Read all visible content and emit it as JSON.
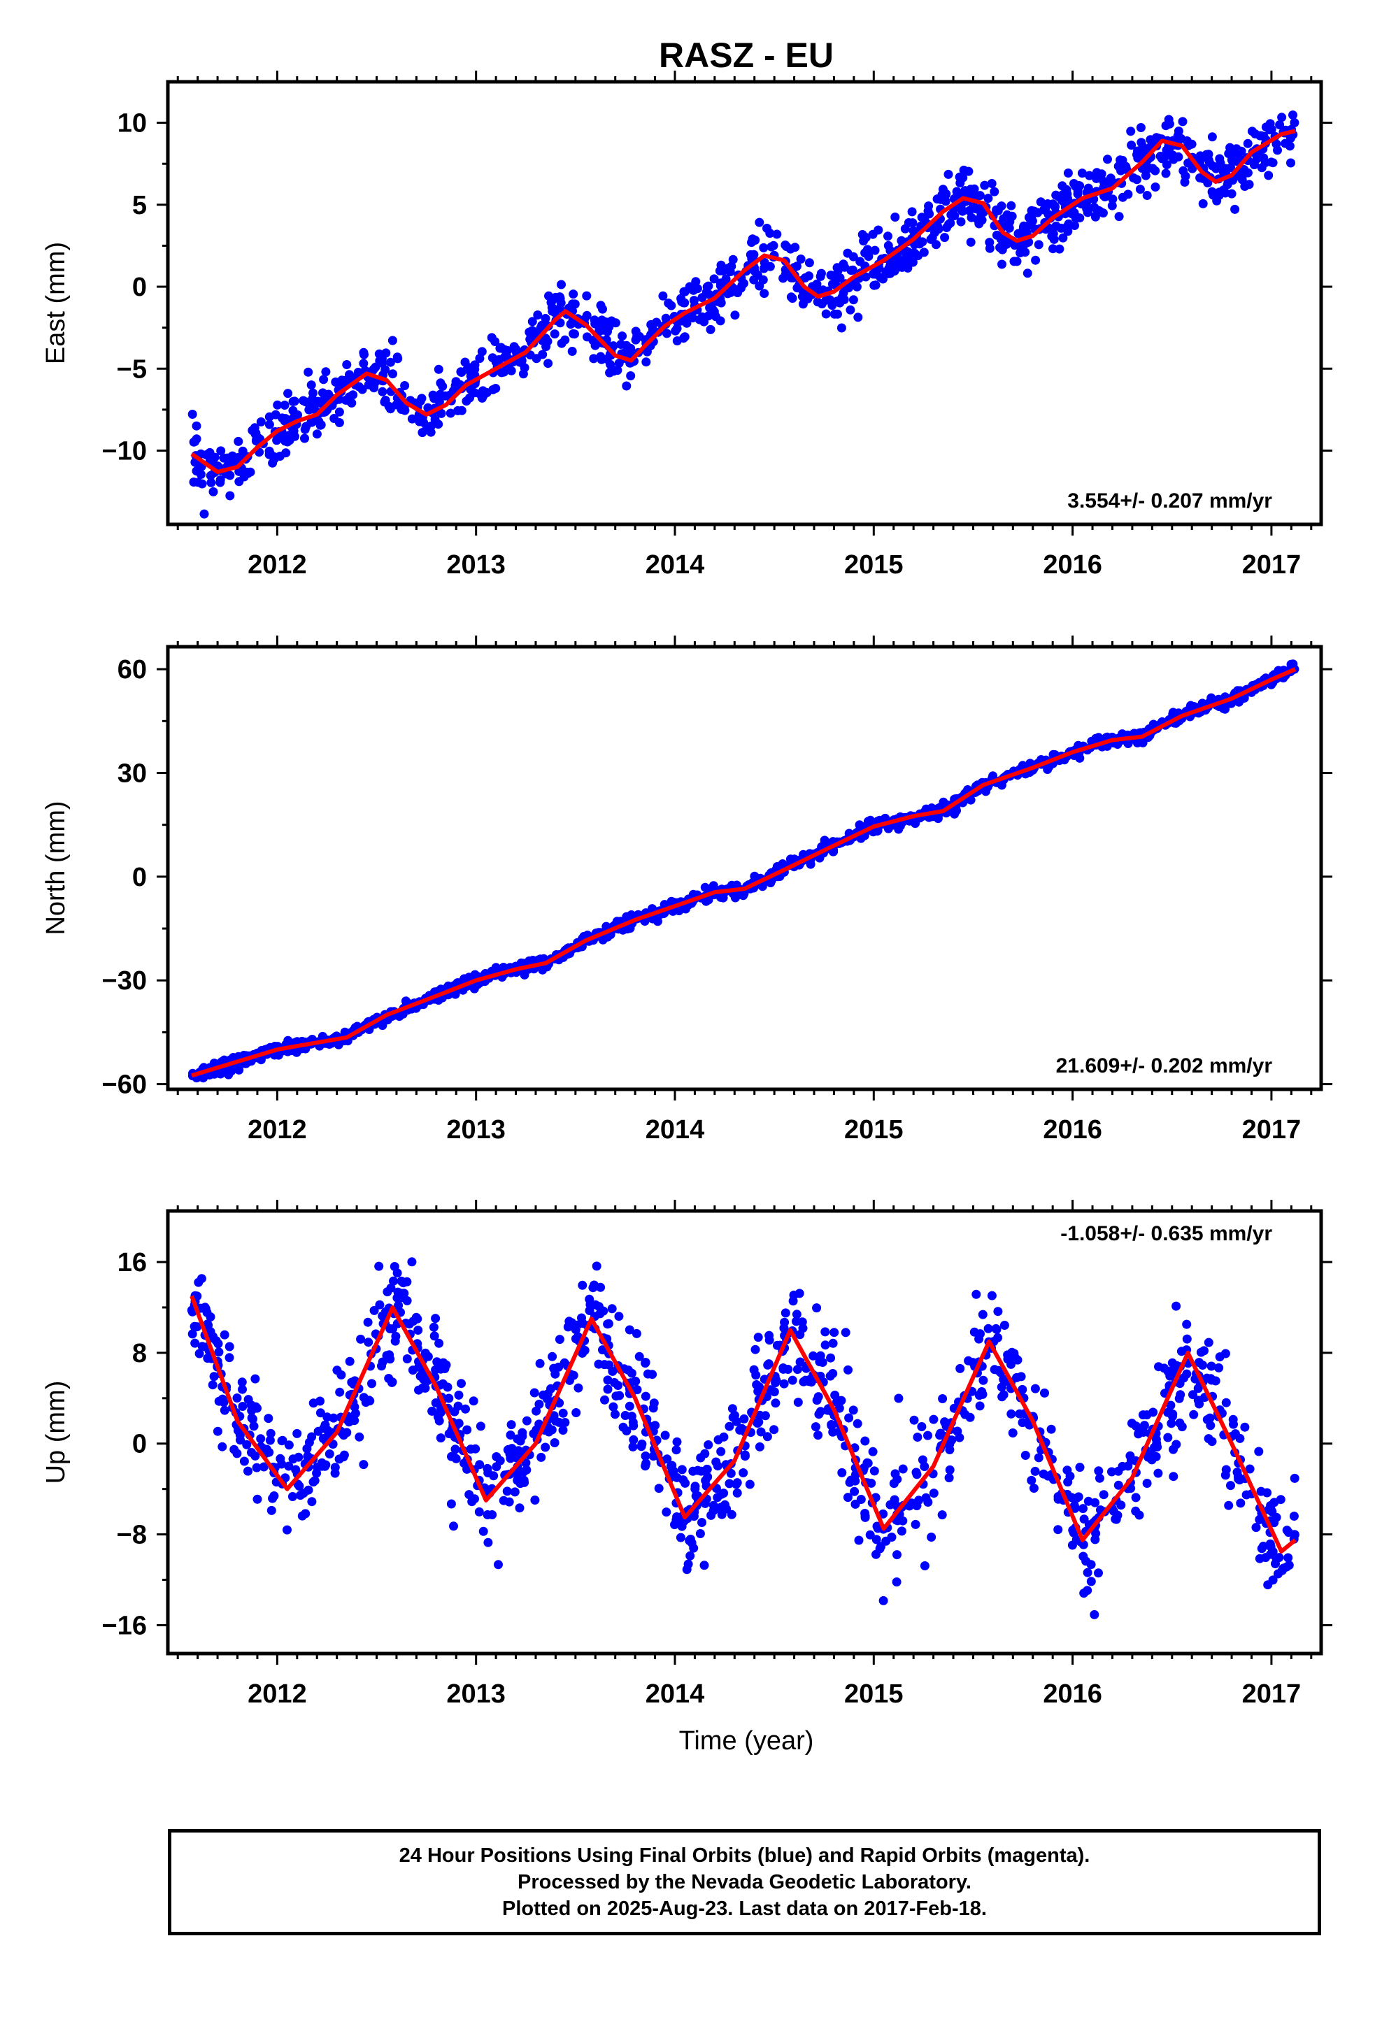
{
  "title": "RASZ - EU",
  "xlabel": "Time (year)",
  "footer": {
    "line1": "24 Hour Positions Using Final Orbits (blue) and Rapid Orbits (magenta).",
    "line2": "Processed by the Nevada Geodetic Laboratory.",
    "line3": "Plotted on 2025-Aug-23. Last data on 2017-Feb-18."
  },
  "colors": {
    "points": "#0000ff",
    "fit": "#ff0000",
    "axes": "#000000"
  },
  "chart_data": [
    {
      "type": "scatter",
      "ylabel": "East (mm)",
      "rate": "3.554+/- 0.207 mm/yr",
      "xlim": [
        2011.45,
        2017.25
      ],
      "ylim": [
        -14.5,
        12.5
      ],
      "xticks": [
        "2012",
        "2013",
        "2014",
        "2015",
        "2016",
        "2017"
      ],
      "yticks": [
        "10",
        "5",
        "0",
        "−5",
        "−10"
      ],
      "series": [
        {
          "role": "fit",
          "x": [
            2011.57,
            2011.7,
            2011.8,
            2011.9,
            2012.0,
            2012.1,
            2012.2,
            2012.3,
            2012.45,
            2012.55,
            2012.65,
            2012.75,
            2012.85,
            2012.95,
            2013.1,
            2013.25,
            2013.4,
            2013.45,
            2013.55,
            2013.7,
            2013.78,
            2013.85,
            2013.95,
            2014.05,
            2014.2,
            2014.35,
            2014.45,
            2014.55,
            2014.65,
            2014.72,
            2014.8,
            2014.9,
            2015.05,
            2015.2,
            2015.35,
            2015.45,
            2015.55,
            2015.65,
            2015.72,
            2015.8,
            2015.9,
            2016.05,
            2016.2,
            2016.35,
            2016.45,
            2016.55,
            2016.65,
            2016.72,
            2016.8,
            2016.9,
            2017.05,
            2017.12
          ],
          "y": [
            -10.2,
            -11.3,
            -11.0,
            -9.8,
            -8.8,
            -8.2,
            -7.8,
            -6.6,
            -5.3,
            -5.7,
            -7.1,
            -7.8,
            -7.2,
            -6.0,
            -5.0,
            -4.0,
            -2.0,
            -1.5,
            -2.3,
            -4.2,
            -4.5,
            -3.6,
            -2.4,
            -1.6,
            -0.7,
            1.0,
            1.9,
            1.6,
            0.0,
            -0.6,
            -0.3,
            0.6,
            1.6,
            2.9,
            4.6,
            5.4,
            5.1,
            3.3,
            2.8,
            3.1,
            4.2,
            5.4,
            6.0,
            7.6,
            8.9,
            8.6,
            7.0,
            6.4,
            6.8,
            8.2,
            9.3,
            9.5
          ]
        }
      ],
      "scatter": {
        "n": 1200,
        "sigma": 0.9,
        "trend": {
          "rate": 3.554,
          "ref_year": 2014.3,
          "offset": -0.4
        },
        "annual": {
          "amp": 1.6,
          "peak": 2012.45
        }
      }
    },
    {
      "type": "scatter",
      "ylabel": "North (mm)",
      "rate": "21.609+/- 0.202 mm/yr",
      "xlim": [
        2011.45,
        2017.25
      ],
      "ylim": [
        -61.5,
        66.5
      ],
      "xticks": [
        "2012",
        "2013",
        "2014",
        "2015",
        "2016",
        "2017"
      ],
      "yticks": [
        "60",
        "30",
        "0",
        "−30",
        "−60"
      ],
      "series": [
        {
          "role": "fit",
          "x": [
            2011.57,
            2011.8,
            2012.0,
            2012.2,
            2012.35,
            2012.55,
            2012.8,
            2013.0,
            2013.2,
            2013.35,
            2013.55,
            2013.8,
            2014.0,
            2014.2,
            2014.35,
            2014.55,
            2014.8,
            2015.0,
            2015.2,
            2015.35,
            2015.55,
            2015.8,
            2016.0,
            2016.2,
            2016.35,
            2016.55,
            2016.8,
            2017.0,
            2017.12
          ],
          "y": [
            -57.5,
            -53.5,
            -50.0,
            -48.0,
            -46.5,
            -40.0,
            -34.5,
            -30.0,
            -26.8,
            -25.0,
            -18.5,
            -12.5,
            -8.5,
            -4.5,
            -3.5,
            2.0,
            9.0,
            14.5,
            17.5,
            19.0,
            26.5,
            31.5,
            36.0,
            39.5,
            40.5,
            46.5,
            51.5,
            57.0,
            60.0
          ]
        }
      ],
      "scatter": {
        "n": 1200,
        "sigma": 0.9,
        "trend": {
          "rate": 21.609,
          "ref_year": 2014.35,
          "offset": 1.5
        },
        "annual": {
          "amp": 1.3,
          "peak": 2012.45
        }
      }
    },
    {
      "type": "scatter",
      "ylabel": "Up (mm)",
      "rate": "-1.058+/- 0.635 mm/yr",
      "xlim": [
        2011.45,
        2017.25
      ],
      "ylim": [
        -18.5,
        20.5
      ],
      "xticks": [
        "2012",
        "2013",
        "2014",
        "2015",
        "2016",
        "2017"
      ],
      "yticks": [
        "16",
        "8",
        "0",
        "−8",
        "−16"
      ],
      "series": [
        {
          "role": "fit",
          "x": [
            2011.57,
            2011.8,
            2012.05,
            2012.3,
            2012.58,
            2012.8,
            2013.05,
            2013.3,
            2013.58,
            2013.8,
            2014.05,
            2014.3,
            2014.58,
            2014.8,
            2015.05,
            2015.3,
            2015.58,
            2015.8,
            2016.05,
            2016.3,
            2016.58,
            2016.8,
            2017.05,
            2017.12
          ],
          "y": [
            13,
            2,
            -4,
            1,
            12,
            5,
            -5,
            0,
            11,
            4,
            -6.5,
            -1.5,
            10,
            3,
            -7.5,
            -2,
            9,
            2,
            -8.5,
            -3,
            8,
            0,
            -9.5,
            -8.5
          ]
        }
      ],
      "scatter": {
        "n": 1200,
        "sigma": 2.6,
        "trend": {
          "rate": -1.058,
          "ref_year": 2014.35,
          "offset": 1.0
        },
        "annual": {
          "amp": 8.6,
          "peak": 2012.58
        }
      }
    }
  ]
}
